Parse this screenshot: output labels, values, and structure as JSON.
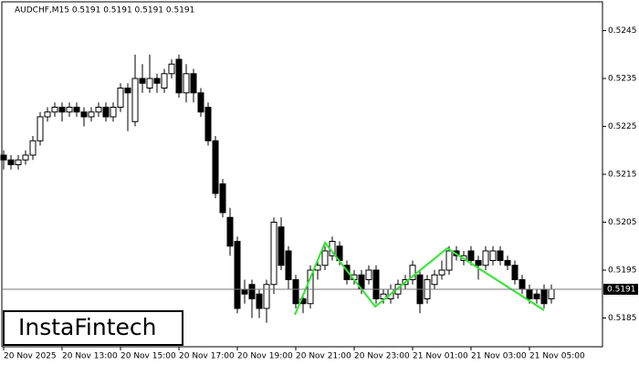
{
  "chart_data": {
    "type": "candlestick",
    "header": "AUDCHF,M15  0.5191 0.5191 0.5191 0.5191",
    "logo": "InstaFintech",
    "categories": [
      "20 Nov 2025",
      null,
      null,
      null,
      null,
      null,
      null,
      null,
      "20 Nov 13:00",
      null,
      null,
      null,
      null,
      null,
      null,
      null,
      "20 Nov 15:00",
      null,
      null,
      null,
      null,
      null,
      null,
      null,
      "20 Nov 17:00",
      null,
      null,
      null,
      null,
      null,
      null,
      null,
      "20 Nov 19:00",
      null,
      null,
      null,
      null,
      null,
      null,
      null,
      "20 Nov 21:00",
      null,
      null,
      null,
      null,
      null,
      null,
      null,
      "20 Nov 23:00",
      null,
      null,
      null,
      null,
      null,
      null,
      null,
      "21 Nov 01:00",
      null,
      null,
      null,
      null,
      null,
      null,
      null,
      "21 Nov 03:00",
      null,
      null,
      null,
      null,
      null,
      null,
      null,
      "21 Nov 05:00",
      null,
      null,
      null
    ],
    "open": [
      0.5219,
      0.5218,
      0.5217,
      0.5218,
      0.5219,
      0.5222,
      0.5227,
      0.5228,
      0.5229,
      0.5228,
      0.5229,
      0.5228,
      0.5227,
      0.5228,
      0.5229,
      0.5227,
      0.5229,
      0.5233,
      0.5226,
      0.5235,
      0.5233,
      0.5235,
      0.5233,
      0.5236,
      0.5239,
      0.5232,
      0.5236,
      0.5232,
      0.5229,
      0.5222,
      0.5213,
      0.5206,
      0.5201,
      0.5191,
      0.5192,
      0.519,
      0.5187,
      0.5192,
      0.5204,
      0.5199,
      0.5193,
      0.5189,
      0.5188,
      0.5195,
      0.5196,
      0.5198,
      0.52,
      0.5196,
      0.5193,
      0.5194,
      0.5193,
      0.5195,
      0.5189,
      0.5189,
      0.519,
      0.5192,
      0.5193,
      0.5194,
      0.5189,
      0.5192,
      0.5194,
      0.5195,
      0.5199,
      0.5197,
      0.5199,
      0.5197,
      0.5196,
      0.5197,
      0.5199,
      0.5197,
      0.5196,
      0.5193,
      0.5191,
      0.519,
      0.5191,
      0.5189
    ],
    "high": [
      0.522,
      0.5219,
      0.5219,
      0.522,
      0.5223,
      0.5228,
      0.5229,
      0.523,
      0.523,
      0.523,
      0.523,
      0.5229,
      0.5229,
      0.523,
      0.523,
      0.523,
      0.5234,
      0.5234,
      0.524,
      0.5238,
      0.524,
      0.5236,
      0.5237,
      0.5239,
      0.524,
      0.5238,
      0.5237,
      0.5233,
      0.523,
      0.5223,
      0.5214,
      0.5208,
      0.5202,
      0.5193,
      0.5193,
      0.5191,
      0.5193,
      0.5206,
      0.5206,
      0.52,
      0.5194,
      0.519,
      0.5196,
      0.5197,
      0.52,
      0.5202,
      0.5201,
      0.5197,
      0.5195,
      0.5195,
      0.5196,
      0.5196,
      0.5191,
      0.5192,
      0.5193,
      0.5194,
      0.5197,
      0.5195,
      0.5194,
      0.5195,
      0.5197,
      0.52,
      0.52,
      0.5199,
      0.52,
      0.5198,
      0.52,
      0.52,
      0.52,
      0.5198,
      0.5197,
      0.5194,
      0.5192,
      0.5191,
      0.5192,
      0.5192
    ],
    "low": [
      0.5216,
      0.5216,
      0.5216,
      0.5217,
      0.5218,
      0.5221,
      0.5226,
      0.5227,
      0.5226,
      0.5227,
      0.5227,
      0.5225,
      0.5226,
      0.5227,
      0.5226,
      0.5226,
      0.5228,
      0.5224,
      0.5225,
      0.5232,
      0.5232,
      0.5232,
      0.5232,
      0.5235,
      0.5231,
      0.523,
      0.523,
      0.5227,
      0.5221,
      0.521,
      0.5206,
      0.5198,
      0.5186,
      0.5188,
      0.5185,
      0.5185,
      0.5184,
      0.519,
      0.5195,
      0.5191,
      0.5187,
      0.5186,
      0.5187,
      0.5193,
      0.5195,
      0.5197,
      0.5196,
      0.5192,
      0.5192,
      0.519,
      0.5192,
      0.5188,
      0.5188,
      0.5188,
      0.5189,
      0.5191,
      0.5192,
      0.5186,
      0.5188,
      0.5191,
      0.5193,
      0.5194,
      0.5197,
      0.5196,
      0.5196,
      0.5193,
      0.5195,
      0.5196,
      0.5196,
      0.5195,
      0.5192,
      0.519,
      0.5188,
      0.5188,
      0.5187,
      0.5188
    ],
    "close": [
      0.5218,
      0.5217,
      0.5218,
      0.5219,
      0.5222,
      0.5227,
      0.5228,
      0.5229,
      0.5228,
      0.5229,
      0.5228,
      0.5227,
      0.5228,
      0.5229,
      0.5227,
      0.5229,
      0.5233,
      0.5232,
      0.5235,
      0.5234,
      0.5235,
      0.5234,
      0.5236,
      0.5238,
      0.5232,
      0.5236,
      0.5232,
      0.5228,
      0.5222,
      0.5211,
      0.5207,
      0.52,
      0.5187,
      0.519,
      0.5189,
      0.5187,
      0.5192,
      0.5205,
      0.5196,
      0.5193,
      0.5188,
      0.5188,
      0.5195,
      0.5196,
      0.5199,
      0.5201,
      0.5197,
      0.5193,
      0.5194,
      0.5191,
      0.5195,
      0.5189,
      0.519,
      0.5191,
      0.5192,
      0.5193,
      0.5196,
      0.5188,
      0.5193,
      0.5194,
      0.5195,
      0.5199,
      0.5198,
      0.5198,
      0.5197,
      0.5196,
      0.5199,
      0.5199,
      0.5197,
      0.5196,
      0.5193,
      0.5191,
      0.5189,
      0.5189,
      0.5188,
      0.5191
    ],
    "current_price": 0.5191,
    "ylim": [
      0.5179,
      0.5251
    ],
    "yticks": [
      0.5245,
      0.5235,
      0.5225,
      0.5215,
      0.5205,
      0.5195,
      0.5185
    ]
  }
}
